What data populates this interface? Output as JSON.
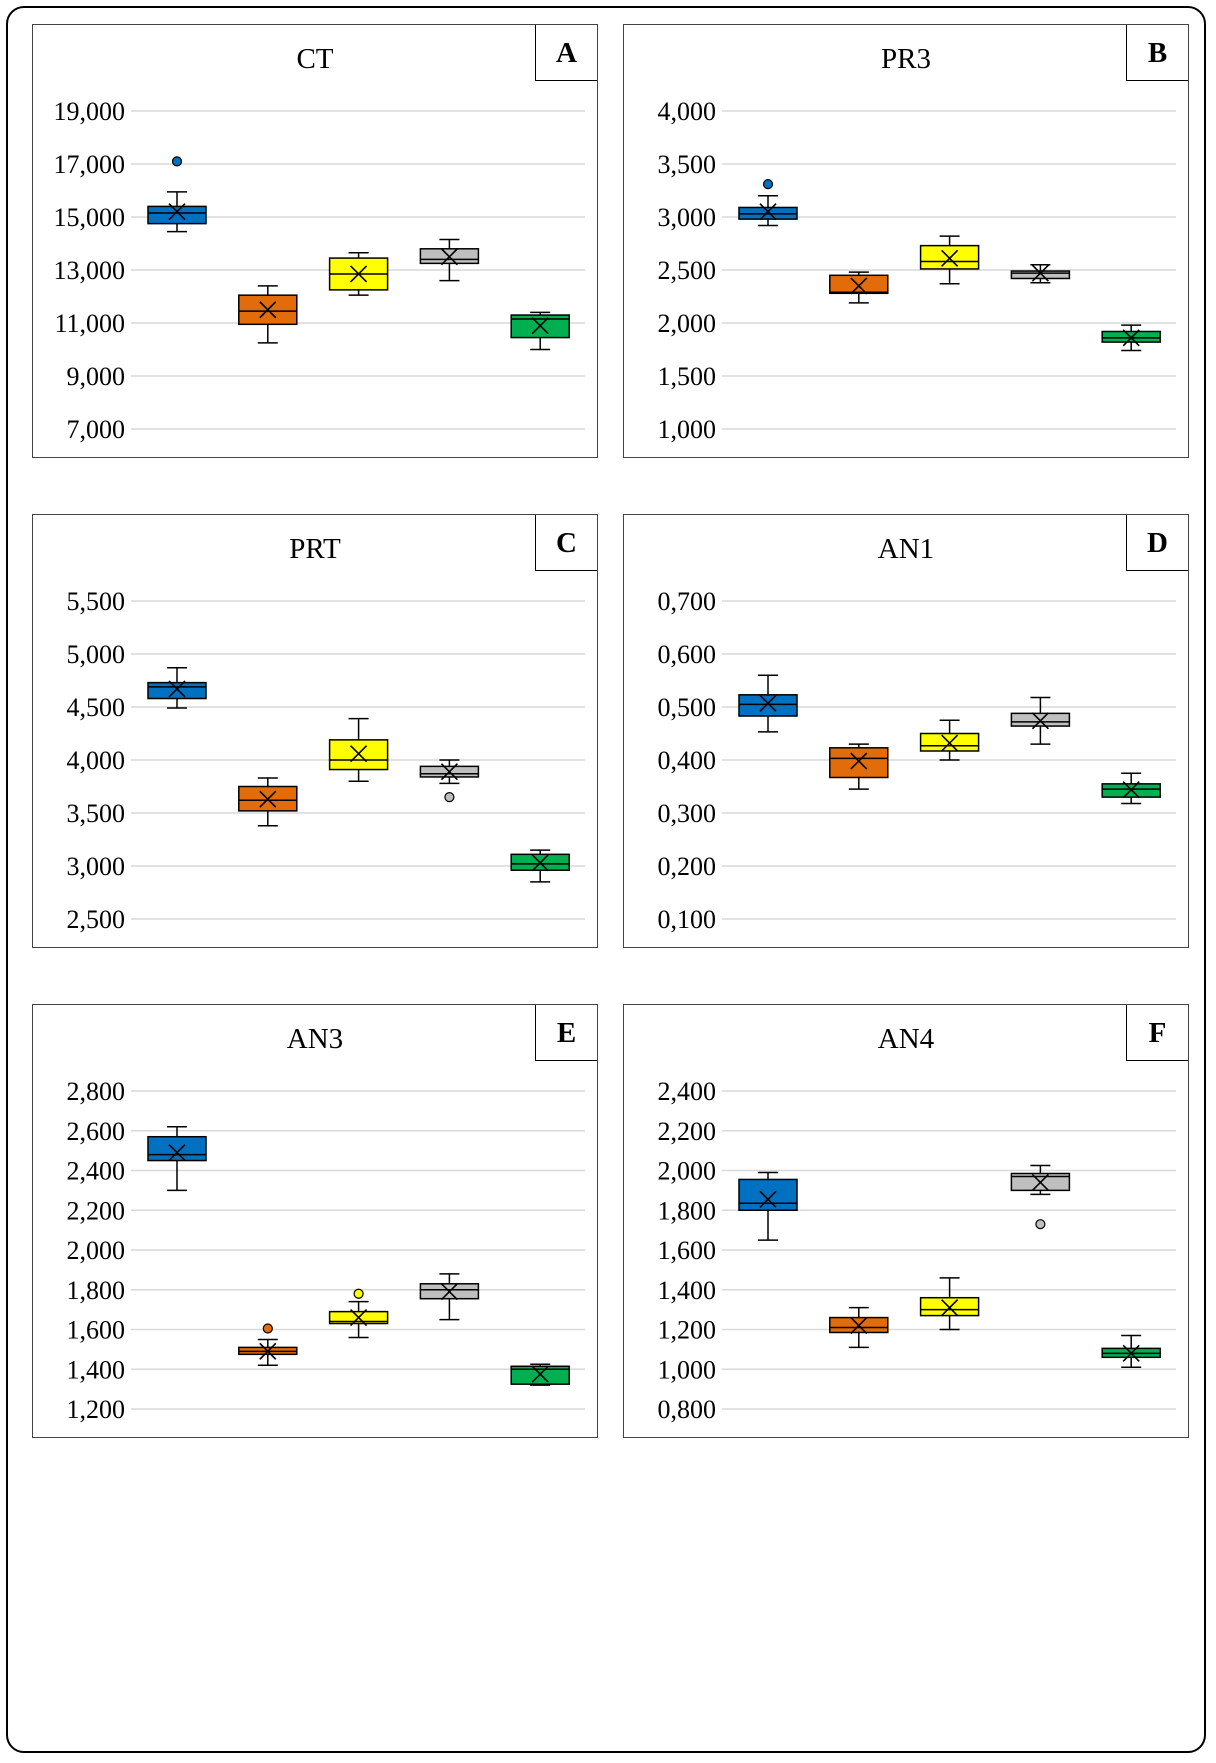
{
  "series_colors": [
    "#0070C0",
    "#E36C0A",
    "#FFFF00",
    "#BFBFBF",
    "#00B050"
  ],
  "chart_data": [
    {
      "type": "box",
      "label": "A",
      "title": "CT",
      "ylim": [
        7000,
        19000
      ],
      "yticks": [
        7000,
        9000,
        11000,
        13000,
        15000,
        17000,
        19000
      ],
      "tick_labels": [
        "7,000",
        "9,000",
        "11,000",
        "13,000",
        "15,000",
        "17,000",
        "19,000"
      ],
      "boxes": [
        {
          "min": 14450,
          "q1": 14750,
          "median": 15150,
          "q3": 15400,
          "max": 15950,
          "mean": 15200,
          "outliers": [
            17100
          ]
        },
        {
          "min": 10250,
          "q1": 10950,
          "median": 11450,
          "q3": 12050,
          "max": 12400,
          "mean": 11500,
          "outliers": []
        },
        {
          "min": 12050,
          "q1": 12250,
          "median": 12850,
          "q3": 13450,
          "max": 13650,
          "mean": 12850,
          "outliers": []
        },
        {
          "min": 12600,
          "q1": 13250,
          "median": 13400,
          "q3": 13800,
          "max": 14150,
          "mean": 13500,
          "outliers": []
        },
        {
          "min": 10000,
          "q1": 10450,
          "median": 11150,
          "q3": 11300,
          "max": 11400,
          "mean": 10900,
          "outliers": []
        }
      ]
    },
    {
      "type": "box",
      "label": "B",
      "title": "PR3",
      "ylim": [
        1000,
        4000
      ],
      "yticks": [
        1000,
        1500,
        2000,
        2500,
        3000,
        3500,
        4000
      ],
      "tick_labels": [
        "1,000",
        "1,500",
        "2,000",
        "2,500",
        "3,000",
        "3,500",
        "4,000"
      ],
      "boxes": [
        {
          "min": 2920,
          "q1": 2980,
          "median": 3030,
          "q3": 3090,
          "max": 3200,
          "mean": 3050,
          "outliers": [
            3310
          ]
        },
        {
          "min": 2190,
          "q1": 2280,
          "median": 2290,
          "q3": 2450,
          "max": 2480,
          "mean": 2350,
          "outliers": []
        },
        {
          "min": 2370,
          "q1": 2510,
          "median": 2580,
          "q3": 2730,
          "max": 2820,
          "mean": 2610,
          "outliers": []
        },
        {
          "min": 2380,
          "q1": 2420,
          "median": 2470,
          "q3": 2490,
          "max": 2550,
          "mean": 2470,
          "outliers": []
        },
        {
          "min": 1740,
          "q1": 1820,
          "median": 1860,
          "q3": 1920,
          "max": 1980,
          "mean": 1860,
          "outliers": []
        }
      ]
    },
    {
      "type": "box",
      "label": "C",
      "title": "PRT",
      "ylim": [
        2500,
        5500
      ],
      "yticks": [
        2500,
        3000,
        3500,
        4000,
        4500,
        5000,
        5500
      ],
      "tick_labels": [
        "2,500",
        "3,000",
        "3,500",
        "4,000",
        "4,500",
        "5,000",
        "5,500"
      ],
      "boxes": [
        {
          "min": 4490,
          "q1": 4580,
          "median": 4690,
          "q3": 4730,
          "max": 4870,
          "mean": 4670,
          "outliers": []
        },
        {
          "min": 3380,
          "q1": 3520,
          "median": 3620,
          "q3": 3750,
          "max": 3830,
          "mean": 3630,
          "outliers": []
        },
        {
          "min": 3800,
          "q1": 3910,
          "median": 4000,
          "q3": 4190,
          "max": 4390,
          "mean": 4060,
          "outliers": []
        },
        {
          "min": 3780,
          "q1": 3840,
          "median": 3870,
          "q3": 3940,
          "max": 4000,
          "mean": 3890,
          "outliers": [
            3650
          ]
        },
        {
          "min": 2850,
          "q1": 2960,
          "median": 3020,
          "q3": 3110,
          "max": 3150,
          "mean": 3030,
          "outliers": []
        }
      ]
    },
    {
      "type": "box",
      "label": "D",
      "title": "AN1",
      "ylim": [
        0.1,
        0.7
      ],
      "yticks": [
        0.1,
        0.2,
        0.3,
        0.4,
        0.5,
        0.6,
        0.7
      ],
      "tick_labels": [
        "0,100",
        "0,200",
        "0,300",
        "0,400",
        "0,500",
        "0,600",
        "0,700"
      ],
      "boxes": [
        {
          "min": 0.453,
          "q1": 0.483,
          "median": 0.505,
          "q3": 0.523,
          "max": 0.56,
          "mean": 0.507,
          "outliers": []
        },
        {
          "min": 0.345,
          "q1": 0.367,
          "median": 0.403,
          "q3": 0.423,
          "max": 0.43,
          "mean": 0.398,
          "outliers": []
        },
        {
          "min": 0.4,
          "q1": 0.417,
          "median": 0.427,
          "q3": 0.45,
          "max": 0.475,
          "mean": 0.432,
          "outliers": []
        },
        {
          "min": 0.43,
          "q1": 0.464,
          "median": 0.472,
          "q3": 0.488,
          "max": 0.518,
          "mean": 0.474,
          "outliers": []
        },
        {
          "min": 0.318,
          "q1": 0.33,
          "median": 0.345,
          "q3": 0.355,
          "max": 0.375,
          "mean": 0.344,
          "outliers": []
        }
      ]
    },
    {
      "type": "box",
      "label": "E",
      "title": "AN3",
      "ylim": [
        1.2,
        2.8
      ],
      "yticks": [
        1.2,
        1.4,
        1.6,
        1.8,
        2.0,
        2.2,
        2.4,
        2.6,
        2.8
      ],
      "tick_labels": [
        "1,200",
        "1,400",
        "1,600",
        "1,800",
        "2,000",
        "2,200",
        "2,400",
        "2,600",
        "2,800"
      ],
      "boxes": [
        {
          "min": 2.3,
          "q1": 2.45,
          "median": 2.48,
          "q3": 2.57,
          "max": 2.62,
          "mean": 2.49,
          "outliers": []
        },
        {
          "min": 1.42,
          "q1": 1.475,
          "median": 1.49,
          "q3": 1.51,
          "max": 1.55,
          "mean": 1.49,
          "outliers": [
            1.605
          ]
        },
        {
          "min": 1.56,
          "q1": 1.63,
          "median": 1.64,
          "q3": 1.69,
          "max": 1.74,
          "mean": 1.66,
          "outliers": [
            1.78
          ]
        },
        {
          "min": 1.65,
          "q1": 1.755,
          "median": 1.8,
          "q3": 1.83,
          "max": 1.88,
          "mean": 1.79,
          "outliers": []
        },
        {
          "min": 1.32,
          "q1": 1.325,
          "median": 1.4,
          "q3": 1.415,
          "max": 1.425,
          "mean": 1.375,
          "outliers": []
        }
      ]
    },
    {
      "type": "box",
      "label": "F",
      "title": "AN4",
      "ylim": [
        0.8,
        2.4
      ],
      "yticks": [
        0.8,
        1.0,
        1.2,
        1.4,
        1.6,
        1.8,
        2.0,
        2.2,
        2.4
      ],
      "tick_labels": [
        "0,800",
        "1,000",
        "1,200",
        "1,400",
        "1,600",
        "1,800",
        "2,000",
        "2,200",
        "2,400"
      ],
      "boxes": [
        {
          "min": 1.65,
          "q1": 1.8,
          "median": 1.835,
          "q3": 1.955,
          "max": 1.99,
          "mean": 1.855,
          "outliers": []
        },
        {
          "min": 1.11,
          "q1": 1.185,
          "median": 1.21,
          "q3": 1.26,
          "max": 1.31,
          "mean": 1.22,
          "outliers": []
        },
        {
          "min": 1.2,
          "q1": 1.27,
          "median": 1.3,
          "q3": 1.36,
          "max": 1.46,
          "mean": 1.31,
          "outliers": []
        },
        {
          "min": 1.88,
          "q1": 1.9,
          "median": 1.97,
          "q3": 1.985,
          "max": 2.025,
          "mean": 1.94,
          "outliers": [
            1.73
          ]
        },
        {
          "min": 1.01,
          "q1": 1.06,
          "median": 1.08,
          "q3": 1.105,
          "max": 1.17,
          "mean": 1.08,
          "outliers": []
        }
      ]
    }
  ]
}
